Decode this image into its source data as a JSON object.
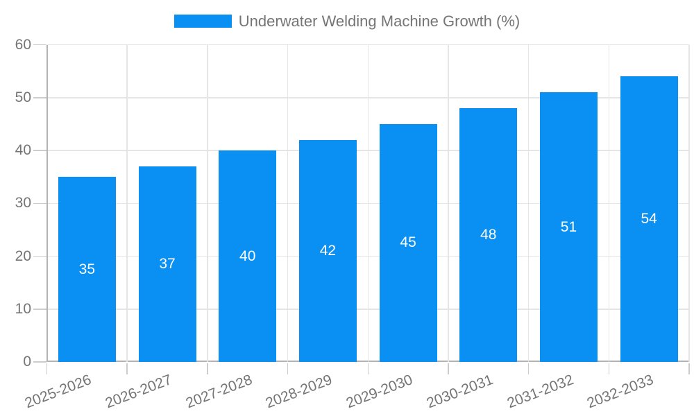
{
  "legend": {
    "label": "Underwater Welding Machine Growth (%)"
  },
  "chart_data": {
    "type": "bar",
    "title": "Underwater Welding Machine Growth (%)",
    "categories": [
      "2025-2026",
      "2026-2027",
      "2027-2028",
      "2028-2029",
      "2029-2030",
      "2030-2031",
      "2031-2032",
      "2032-2033"
    ],
    "values": [
      35,
      37,
      40,
      42,
      45,
      48,
      51,
      54
    ],
    "series": [
      {
        "name": "Underwater Welding Machine Growth (%)",
        "values": [
          35,
          37,
          40,
          42,
          45,
          48,
          51,
          54
        ]
      }
    ],
    "xlabel": "",
    "ylabel": "",
    "ylim": [
      0,
      60
    ],
    "y_ticks": [
      0,
      10,
      20,
      30,
      40,
      50,
      60
    ],
    "grid": true,
    "legend_position": "top",
    "x_label_rotation_deg": -21,
    "bar_labels_shown": true
  },
  "colors": {
    "bar": "#0a8ff3",
    "bar_value_label": "#ffffff",
    "tick_text": "#757575",
    "legend_text": "#757575",
    "gridline": "#e5e5e5",
    "axis_line": "#b3b3b3",
    "tick_mark": "#cccccc",
    "background": "#ffffff"
  }
}
